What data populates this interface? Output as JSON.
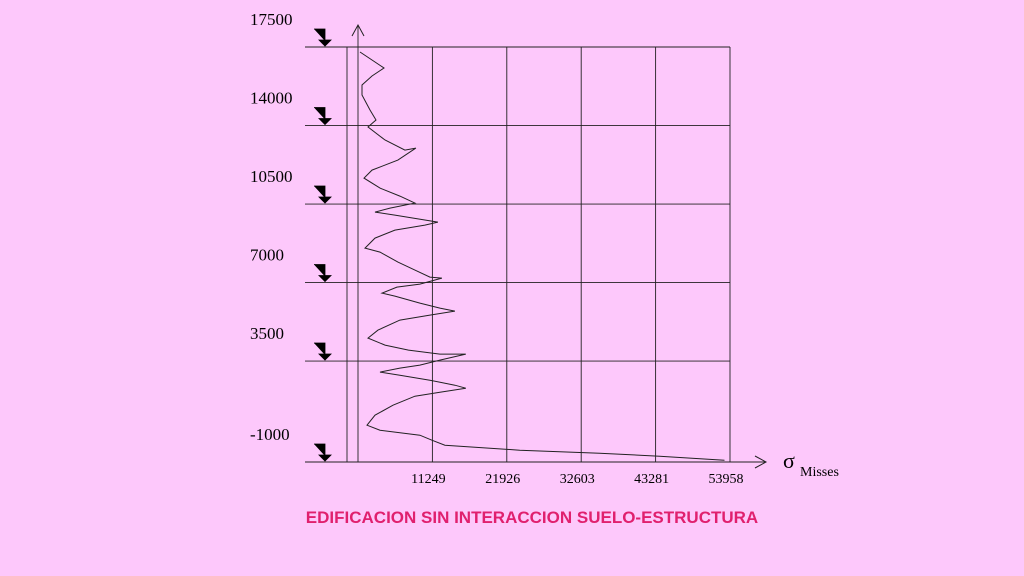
{
  "chart_data": {
    "type": "line",
    "title": "EDIFICACION SIN INTERACCION SUELO-ESTRUCTURA",
    "x_label": "Misses",
    "x_symbol": "σ",
    "xlim": [
      572,
      53958
    ],
    "ylim": [
      -1000,
      17500
    ],
    "xticks": [
      11249,
      21926,
      32603,
      43281,
      53958
    ],
    "yticks": [
      -1000,
      3500,
      7000,
      10500,
      14000,
      17500
    ],
    "grid": true,
    "series": [
      {
        "color": "#222222",
        "x": [
          859,
          3008,
          4298,
          2578,
          1145,
          1145,
          2292,
          3151,
          2005,
          4441,
          7307,
          8883,
          6304,
          2578,
          1432,
          3725,
          6591,
          8740,
          5158,
          3008,
          5874,
          12036,
          10173,
          5874,
          3008,
          1575,
          3725,
          6304,
          8740,
          10890,
          12609,
          9457,
          6161,
          4011,
          5874,
          9457,
          12322,
          14472,
          10890,
          6591,
          3438,
          2005,
          4441,
          7824,
          12322,
          16048,
          12322,
          9457,
          6591,
          3725,
          6591,
          10890,
          14472,
          16048,
          12322,
          8740,
          5588,
          3008,
          1862,
          3725,
          9457,
          11177,
          13039,
          23787,
          35251,
          43849,
          53164
        ],
        "values": [
          17277,
          16831,
          16563,
          16206,
          15805,
          15359,
          14690,
          14244,
          13932,
          13352,
          12906,
          12995,
          12460,
          12014,
          11657,
          11211,
          10854,
          10542,
          10319,
          10141,
          10007,
          9695,
          9561,
          9338,
          8982,
          8536,
          8357,
          7911,
          7555,
          7243,
          7198,
          6931,
          6796,
          6529,
          6395,
          6083,
          5860,
          5726,
          5548,
          5325,
          4879,
          4522,
          4210,
          3987,
          3809,
          3809,
          3541,
          3318,
          3184,
          3006,
          2871,
          2648,
          2425,
          2291,
          2113,
          1934,
          1533,
          1087,
          641,
          418,
          195,
          -28,
          -251,
          -474,
          -608,
          -742,
          -920
        ]
      }
    ]
  }
}
